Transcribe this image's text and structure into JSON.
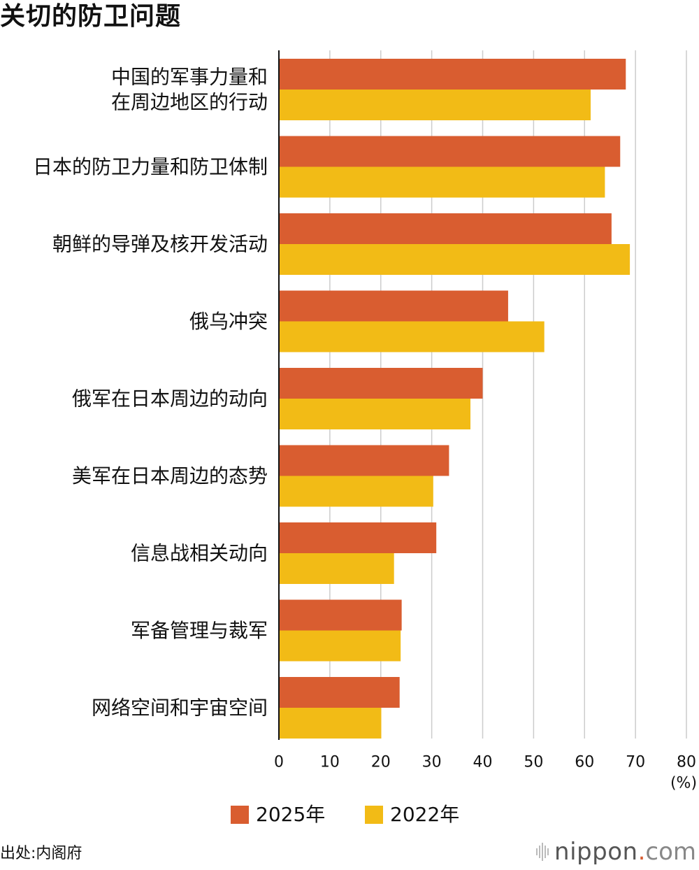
{
  "title": "关切的防卫问题",
  "source": "出处:内阁府",
  "logo": {
    "word": "nippon",
    "dot": ".",
    "tld": "com"
  },
  "colors": {
    "s2025": "#d95d30",
    "s2022": "#f2bb16",
    "grid": "#cccccc",
    "axis": "#111111"
  },
  "legend": [
    {
      "label": "2025年",
      "color": "#d95d30"
    },
    {
      "label": "2022年",
      "color": "#f2bb16"
    }
  ],
  "chart_data": {
    "type": "bar",
    "orientation": "horizontal",
    "categories": [
      [
        "中国的军事力量和",
        "在周边地区的行动"
      ],
      [
        "日本的防卫力量和防卫体制"
      ],
      [
        "朝鲜的导弹及核开发活动"
      ],
      [
        "俄乌冲突"
      ],
      [
        "俄军在日本周边的动向"
      ],
      [
        "美军在日本周边的态势"
      ],
      [
        "信息战相关动向"
      ],
      [
        "军备管理与裁军"
      ],
      [
        "网络空间和宇宙空间"
      ]
    ],
    "series": [
      {
        "name": "2025年",
        "values": [
          68.1,
          67.0,
          65.3,
          45.0,
          40.0,
          33.4,
          30.9,
          24.1,
          23.7
        ]
      },
      {
        "name": "2022年",
        "values": [
          61.2,
          64.0,
          68.9,
          52.1,
          37.6,
          30.3,
          22.6,
          23.9,
          20.1
        ]
      }
    ],
    "xlim": [
      0,
      80
    ],
    "xticks": [
      "0",
      "10",
      "20",
      "30",
      "40",
      "50",
      "60",
      "70",
      "80"
    ],
    "unit": "(%)",
    "grid": true
  }
}
